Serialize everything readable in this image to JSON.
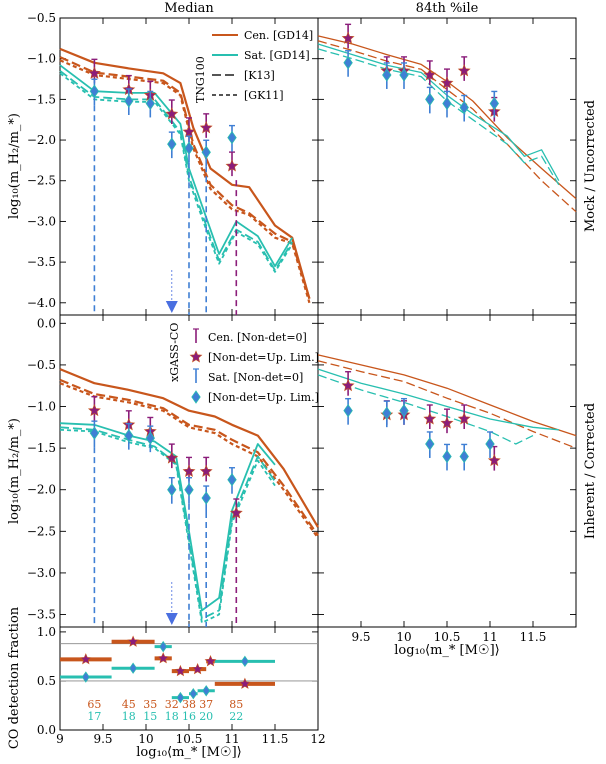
{
  "colors": {
    "cen": "#c8561c",
    "sat": "#28bfb0",
    "cen_obs": "#8b1d7a",
    "sat_obs": "#3f7fd4",
    "arrow": "#4a6fe0"
  },
  "titles": {
    "left": "Median",
    "right": "84th %ile"
  },
  "row_labels": {
    "top": "Mock / Uncorrected",
    "mid": "Inherent / Corrected"
  },
  "y_labels": {
    "top": "log₁₀(m_H₂/m_*)",
    "mid": "log₁₀(m_H₂/m_*)",
    "bot": "CO detection fraction"
  },
  "x_labels": {
    "right": "log₁₀⟨m_* [M☉]⟩",
    "bottom": "log₁₀⟨m_* [M☉]⟩"
  },
  "legend_top": {
    "sim_name": "TNG100",
    "items": [
      {
        "label": "Cen. [GD14]",
        "style": "solid",
        "color": "cen"
      },
      {
        "label": "Sat. [GD14]",
        "style": "solid",
        "color": "sat"
      },
      {
        "label": "[K13]",
        "style": "longdash",
        "color": "grey"
      },
      {
        "label": "[GK11]",
        "style": "shortdash",
        "color": "grey"
      }
    ]
  },
  "legend_mid": {
    "obs_name": "xGASS-CO",
    "items": [
      {
        "label": "Cen. [Non-det=0]",
        "marker": "errbar",
        "color": "cen_obs"
      },
      {
        "label": "[Non-det=Up. Lim.]",
        "marker": "star",
        "color": "cen_obs"
      },
      {
        "label": "Sat. [Non-det=0]",
        "marker": "errbar",
        "color": "sat_obs"
      },
      {
        "label": "[Non-det=Up. Lim.]",
        "marker": "diamond",
        "color": "sat_obs"
      }
    ]
  },
  "chart_data": {
    "type": "line",
    "x_ticks_left": [
      "9",
      "9.5",
      "10",
      "10.5",
      "11",
      "11.5",
      "12"
    ],
    "x_ticks_right": [
      "9.5",
      "10",
      "10.5",
      "11",
      "11.5"
    ],
    "y_ticks_top": [
      "-4.0",
      "-3.5",
      "-3.0",
      "-2.5",
      "-2.0",
      "-1.5",
      "-1.0",
      "-0.5"
    ],
    "y_ticks_mid": [
      "-3.5",
      "-3.0",
      "-2.5",
      "-2.0",
      "-1.5",
      "-1.0",
      "-0.5",
      "0.0"
    ],
    "y_ticks_bot": [
      "0.0",
      "0.5",
      "1.0"
    ],
    "xlim_left": [
      9,
      12
    ],
    "xlim_right": [
      9,
      12
    ],
    "ylim_top": [
      -4.15,
      -0.5
    ],
    "ylim_mid": [
      -3.65,
      0.1
    ],
    "ylim_bot": [
      0,
      1.05
    ],
    "top_median": {
      "cen_gd14": [
        [
          9.0,
          -0.88
        ],
        [
          9.4,
          -1.05
        ],
        [
          9.8,
          -1.12
        ],
        [
          10.2,
          -1.18
        ],
        [
          10.4,
          -1.3
        ],
        [
          10.55,
          -1.85
        ],
        [
          10.75,
          -2.35
        ],
        [
          11.0,
          -2.55
        ],
        [
          11.2,
          -2.58
        ],
        [
          11.5,
          -3.05
        ],
        [
          11.7,
          -3.2
        ],
        [
          11.9,
          -3.95
        ]
      ],
      "cen_k13": [
        [
          9.0,
          -0.98
        ],
        [
          9.4,
          -1.17
        ],
        [
          9.8,
          -1.22
        ],
        [
          10.2,
          -1.27
        ],
        [
          10.4,
          -1.42
        ],
        [
          10.55,
          -2.05
        ],
        [
          10.75,
          -2.55
        ],
        [
          11.0,
          -2.8
        ],
        [
          11.2,
          -2.9
        ],
        [
          11.5,
          -3.15
        ],
        [
          11.7,
          -3.25
        ],
        [
          11.9,
          -3.95
        ]
      ],
      "cen_gk11": [
        [
          9.0,
          -1.02
        ],
        [
          9.4,
          -1.2
        ],
        [
          9.8,
          -1.25
        ],
        [
          10.2,
          -1.3
        ],
        [
          10.4,
          -1.45
        ],
        [
          10.55,
          -2.1
        ],
        [
          10.75,
          -2.6
        ],
        [
          11.0,
          -2.85
        ],
        [
          11.2,
          -2.92
        ],
        [
          11.5,
          -3.2
        ],
        [
          11.7,
          -3.27
        ],
        [
          11.9,
          -4.0
        ]
      ],
      "sat_gd14": [
        [
          9.0,
          -1.08
        ],
        [
          9.4,
          -1.4
        ],
        [
          9.8,
          -1.42
        ],
        [
          10.1,
          -1.42
        ],
        [
          10.4,
          -1.8
        ],
        [
          10.5,
          -2.35
        ],
        [
          10.7,
          -2.95
        ],
        [
          10.85,
          -3.4
        ],
        [
          11.05,
          -3.0
        ],
        [
          11.3,
          -3.18
        ],
        [
          11.5,
          -3.55
        ],
        [
          11.7,
          -3.2
        ]
      ],
      "sat_k13": [
        [
          9.0,
          -1.15
        ],
        [
          9.4,
          -1.47
        ],
        [
          9.8,
          -1.5
        ],
        [
          10.1,
          -1.5
        ],
        [
          10.4,
          -1.9
        ],
        [
          10.5,
          -2.45
        ],
        [
          10.7,
          -3.05
        ],
        [
          10.85,
          -3.48
        ],
        [
          11.05,
          -3.1
        ],
        [
          11.3,
          -3.25
        ],
        [
          11.5,
          -3.6
        ],
        [
          11.7,
          -3.25
        ]
      ],
      "sat_gk11": [
        [
          9.0,
          -1.18
        ],
        [
          9.4,
          -1.5
        ],
        [
          9.8,
          -1.53
        ],
        [
          10.1,
          -1.53
        ],
        [
          10.4,
          -1.93
        ],
        [
          10.5,
          -2.5
        ],
        [
          10.7,
          -3.1
        ],
        [
          10.85,
          -3.52
        ],
        [
          11.05,
          -3.13
        ],
        [
          11.3,
          -3.28
        ],
        [
          11.5,
          -3.62
        ],
        [
          11.7,
          -3.28
        ]
      ]
    },
    "top_obs": {
      "cen": [
        [
          9.4,
          -1.18
        ],
        [
          9.8,
          -1.38
        ],
        [
          10.05,
          -1.45
        ],
        [
          10.3,
          -1.68
        ],
        [
          10.5,
          -1.9
        ],
        [
          10.7,
          -1.85
        ],
        [
          11.0,
          -2.32
        ]
      ],
      "sat": [
        [
          9.4,
          -1.4
        ],
        [
          9.8,
          -1.52
        ],
        [
          10.05,
          -1.55
        ],
        [
          10.3,
          -2.05
        ],
        [
          10.5,
          -2.1
        ],
        [
          10.7,
          -2.15
        ],
        [
          11.0,
          -1.97
        ]
      ]
    },
    "top_84": {
      "cen_gd14": [
        [
          9.0,
          -0.72
        ],
        [
          9.4,
          -0.82
        ],
        [
          9.8,
          -0.95
        ],
        [
          10.2,
          -1.07
        ],
        [
          10.5,
          -1.28
        ],
        [
          10.8,
          -1.52
        ],
        [
          11.2,
          -1.97
        ],
        [
          11.6,
          -2.35
        ],
        [
          12.0,
          -2.72
        ]
      ],
      "cen_k13": [
        [
          9.0,
          -0.78
        ],
        [
          9.4,
          -0.9
        ],
        [
          9.8,
          -1.03
        ],
        [
          10.2,
          -1.13
        ],
        [
          10.5,
          -1.38
        ],
        [
          10.8,
          -1.62
        ],
        [
          11.2,
          -2.05
        ],
        [
          11.6,
          -2.5
        ],
        [
          12.0,
          -2.88
        ]
      ],
      "sat_gd14": [
        [
          9.0,
          -0.82
        ],
        [
          9.4,
          -0.95
        ],
        [
          9.8,
          -1.08
        ],
        [
          10.2,
          -1.17
        ],
        [
          10.5,
          -1.45
        ],
        [
          10.8,
          -1.68
        ],
        [
          11.2,
          -1.95
        ],
        [
          11.4,
          -2.2
        ],
        [
          11.6,
          -2.12
        ],
        [
          11.8,
          -2.5
        ]
      ],
      "sat_k13": [
        [
          9.0,
          -0.88
        ],
        [
          9.4,
          -1.0
        ],
        [
          9.8,
          -1.13
        ],
        [
          10.2,
          -1.22
        ],
        [
          10.5,
          -1.52
        ],
        [
          10.8,
          -1.75
        ],
        [
          11.2,
          -2.05
        ],
        [
          11.4,
          -2.28
        ],
        [
          11.6,
          -2.2
        ],
        [
          11.8,
          -2.55
        ]
      ]
    },
    "top84_obs": {
      "cen": [
        [
          9.35,
          -0.75
        ],
        [
          9.8,
          -1.15
        ],
        [
          10.0,
          -1.15
        ],
        [
          10.3,
          -1.2
        ],
        [
          10.5,
          -1.3
        ],
        [
          10.7,
          -1.15
        ],
        [
          11.05,
          -1.65
        ]
      ],
      "sat": [
        [
          9.35,
          -1.05
        ],
        [
          9.8,
          -1.2
        ],
        [
          10.0,
          -1.2
        ],
        [
          10.3,
          -1.5
        ],
        [
          10.5,
          -1.55
        ],
        [
          10.7,
          -1.6
        ],
        [
          11.05,
          -1.55
        ]
      ]
    },
    "mid_median": {
      "cen_gd14": [
        [
          9.0,
          -0.55
        ],
        [
          9.4,
          -0.72
        ],
        [
          9.8,
          -0.8
        ],
        [
          10.2,
          -0.9
        ],
        [
          10.5,
          -1.05
        ],
        [
          10.8,
          -1.12
        ],
        [
          11.0,
          -1.22
        ],
        [
          11.3,
          -1.35
        ],
        [
          11.6,
          -1.75
        ],
        [
          12.0,
          -2.45
        ]
      ],
      "cen_k13": [
        [
          9.0,
          -0.68
        ],
        [
          9.4,
          -0.85
        ],
        [
          9.8,
          -0.92
        ],
        [
          10.2,
          -1.02
        ],
        [
          10.5,
          -1.22
        ],
        [
          10.8,
          -1.28
        ],
        [
          11.0,
          -1.4
        ],
        [
          11.3,
          -1.55
        ],
        [
          11.6,
          -1.95
        ],
        [
          12.0,
          -2.55
        ]
      ],
      "cen_gk11": [
        [
          9.0,
          -0.72
        ],
        [
          9.4,
          -0.88
        ],
        [
          9.8,
          -0.95
        ],
        [
          10.2,
          -1.05
        ],
        [
          10.5,
          -1.25
        ],
        [
          10.8,
          -1.32
        ],
        [
          11.0,
          -1.45
        ],
        [
          11.3,
          -1.6
        ],
        [
          11.6,
          -2.0
        ],
        [
          12.0,
          -2.58
        ]
      ],
      "sat_gd14": [
        [
          9.0,
          -1.2
        ],
        [
          9.4,
          -1.22
        ],
        [
          9.8,
          -1.35
        ],
        [
          10.1,
          -1.42
        ],
        [
          10.35,
          -1.6
        ],
        [
          10.5,
          -2.5
        ],
        [
          10.65,
          -3.45
        ],
        [
          10.85,
          -3.3
        ],
        [
          11.0,
          -2.25
        ],
        [
          11.3,
          -1.45
        ],
        [
          11.5,
          -1.7
        ]
      ],
      "sat_k13": [
        [
          9.0,
          -1.25
        ],
        [
          9.4,
          -1.28
        ],
        [
          9.8,
          -1.4
        ],
        [
          10.1,
          -1.48
        ],
        [
          10.35,
          -1.68
        ],
        [
          10.5,
          -2.6
        ],
        [
          10.65,
          -3.55
        ],
        [
          10.85,
          -3.45
        ],
        [
          11.0,
          -2.35
        ],
        [
          11.3,
          -1.6
        ],
        [
          11.5,
          -1.9
        ]
      ],
      "sat_gk11": [
        [
          9.0,
          -1.28
        ],
        [
          9.4,
          -1.3
        ],
        [
          9.8,
          -1.43
        ],
        [
          10.1,
          -1.5
        ],
        [
          10.35,
          -1.7
        ],
        [
          10.5,
          -2.65
        ],
        [
          10.65,
          -3.6
        ],
        [
          10.85,
          -3.5
        ],
        [
          11.0,
          -2.4
        ],
        [
          11.3,
          -1.65
        ],
        [
          11.5,
          -1.95
        ]
      ]
    },
    "mid_obs": {
      "cen": [
        [
          9.4,
          -1.05
        ],
        [
          9.8,
          -1.22
        ],
        [
          10.05,
          -1.3
        ],
        [
          10.3,
          -1.62
        ],
        [
          10.5,
          -1.78
        ],
        [
          10.7,
          -1.78
        ],
        [
          11.05,
          -2.28
        ]
      ],
      "sat": [
        [
          9.4,
          -1.32
        ],
        [
          9.8,
          -1.35
        ],
        [
          10.05,
          -1.38
        ],
        [
          10.3,
          -2.0
        ],
        [
          10.5,
          -2.0
        ],
        [
          10.7,
          -2.1
        ],
        [
          11.0,
          -1.88
        ]
      ]
    },
    "mid_84": {
      "cen_gd14": [
        [
          9.0,
          -0.38
        ],
        [
          9.5,
          -0.5
        ],
        [
          10.0,
          -0.62
        ],
        [
          10.5,
          -0.78
        ],
        [
          11.0,
          -0.98
        ],
        [
          11.5,
          -1.18
        ],
        [
          12.0,
          -1.35
        ]
      ],
      "cen_k13": [
        [
          9.0,
          -0.45
        ],
        [
          9.5,
          -0.58
        ],
        [
          10.0,
          -0.7
        ],
        [
          10.5,
          -0.9
        ],
        [
          11.0,
          -1.08
        ],
        [
          11.5,
          -1.3
        ],
        [
          12.0,
          -1.5
        ]
      ],
      "sat_gd14": [
        [
          9.0,
          -0.55
        ],
        [
          9.5,
          -0.72
        ],
        [
          10.0,
          -0.85
        ],
        [
          10.5,
          -1.0
        ],
        [
          11.0,
          -1.15
        ],
        [
          11.5,
          -1.25
        ],
        [
          11.8,
          -1.28
        ]
      ],
      "sat_k13": [
        [
          9.0,
          -0.62
        ],
        [
          9.5,
          -0.8
        ],
        [
          10.0,
          -0.95
        ],
        [
          10.5,
          -1.12
        ],
        [
          11.0,
          -1.3
        ],
        [
          11.3,
          -1.45
        ],
        [
          11.5,
          -1.35
        ]
      ]
    },
    "mid84_obs": {
      "cen": [
        [
          9.35,
          -0.75
        ],
        [
          9.8,
          -1.1
        ],
        [
          10.0,
          -1.1
        ],
        [
          10.3,
          -1.15
        ],
        [
          10.5,
          -1.2
        ],
        [
          10.7,
          -1.15
        ],
        [
          11.05,
          -1.65
        ]
      ],
      "sat": [
        [
          9.35,
          -1.05
        ],
        [
          9.8,
          -1.08
        ],
        [
          10.0,
          -1.05
        ],
        [
          10.3,
          -1.45
        ],
        [
          10.5,
          -1.6
        ],
        [
          10.7,
          -1.6
        ],
        [
          11.0,
          -1.45
        ]
      ]
    },
    "bot_fraction": {
      "cen": [
        [
          9.0,
          9.6,
          0.72
        ],
        [
          9.6,
          10.1,
          0.9
        ],
        [
          10.1,
          10.3,
          0.73
        ],
        [
          10.3,
          10.5,
          0.6
        ],
        [
          10.5,
          10.7,
          0.62
        ],
        [
          10.7,
          10.8,
          0.7
        ],
        [
          10.8,
          11.5,
          0.47
        ]
      ],
      "sat": [
        [
          9.0,
          9.6,
          0.54
        ],
        [
          9.6,
          10.1,
          0.63
        ],
        [
          10.1,
          10.3,
          0.85
        ],
        [
          10.3,
          10.5,
          0.33
        ],
        [
          10.5,
          10.6,
          0.37
        ],
        [
          10.6,
          10.8,
          0.4
        ],
        [
          10.8,
          11.5,
          0.7
        ]
      ],
      "ref_lines": [
        0.5,
        0.88
      ]
    },
    "counts": {
      "cen": [
        [
          "65",
          9.4
        ],
        [
          "45",
          9.8
        ],
        [
          "35",
          10.05
        ],
        [
          "32",
          10.3
        ],
        [
          "38",
          10.5
        ],
        [
          "37",
          10.7
        ],
        [
          "85",
          11.05
        ]
      ],
      "sat": [
        [
          "17",
          9.4
        ],
        [
          "18",
          9.8
        ],
        [
          "15",
          10.05
        ],
        [
          "18",
          10.3
        ],
        [
          "16",
          10.5
        ],
        [
          "20",
          10.7
        ],
        [
          "22",
          11.05
        ]
      ]
    }
  }
}
